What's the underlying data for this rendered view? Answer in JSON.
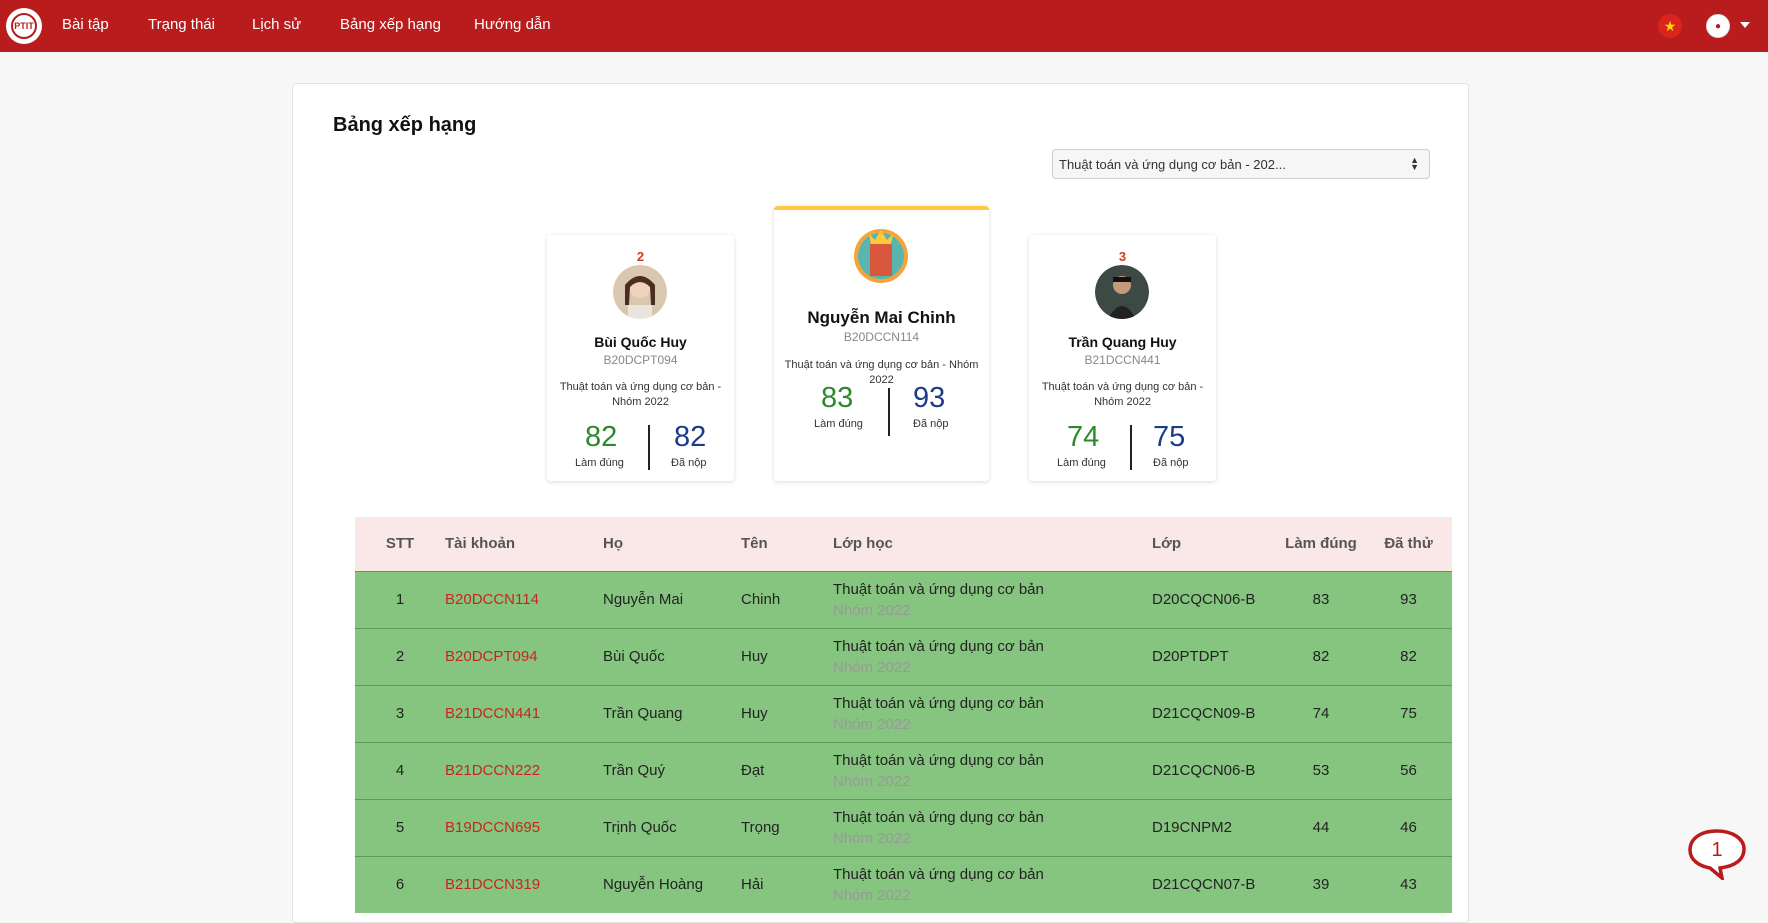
{
  "nav": {
    "items": [
      "Bài tập",
      "Trạng thái",
      "Lịch sử",
      "Bảng xếp hạng",
      "Hướng dẫn"
    ],
    "logo_text": "PTIT",
    "flag_icon": "vietnam-flag-icon",
    "accent": "#b81c1c"
  },
  "page": {
    "title": "Bảng xếp hạng",
    "select_value": "Thuật toán và ứng dụng cơ bản - 202..."
  },
  "podium": {
    "first": {
      "name": "Nguyễn Mai Chinh",
      "user": "B20DCCN114",
      "class": "Thuật toán và ứng dụng cơ bản - Nhóm 2022",
      "correct": "83",
      "submitted": "93",
      "correct_label": "Làm đúng",
      "submitted_label": "Đã nộp"
    },
    "second": {
      "rank": "2",
      "name": "Bùi Quốc Huy",
      "user": "B20DCPT094",
      "class": "Thuật toán và ứng dụng cơ bản - Nhóm 2022",
      "correct": "82",
      "submitted": "82",
      "correct_label": "Làm đúng",
      "submitted_label": "Đã nộp"
    },
    "third": {
      "rank": "3",
      "name": "Trần Quang Huy",
      "user": "B21DCCN441",
      "class": "Thuật toán và ứng dụng cơ bản - Nhóm 2022",
      "correct": "74",
      "submitted": "75",
      "correct_label": "Làm đúng",
      "submitted_label": "Đã nộp"
    }
  },
  "table": {
    "headers": [
      "STT",
      "Tài khoản",
      "Họ",
      "Tên",
      "Lớp học",
      "Lớp",
      "Làm đúng",
      "Đã thử"
    ],
    "rows": [
      [
        "1",
        "B20DCCN114",
        "Nguyễn Mai",
        "Chinh",
        "Thuật toán và ứng dụng cơ bản",
        "Nhóm 2022",
        "D20CQCN06-B",
        "83",
        "93"
      ],
      [
        "2",
        "B20DCPT094",
        "Bùi Quốc",
        "Huy",
        "Thuật toán và ứng dụng cơ bản",
        "Nhóm 2022",
        "D20PTDPT",
        "82",
        "82"
      ],
      [
        "3",
        "B21DCCN441",
        "Trần Quang",
        "Huy",
        "Thuật toán và ứng dụng cơ bản",
        "Nhóm 2022",
        "D21CQCN09-B",
        "74",
        "75"
      ],
      [
        "4",
        "B21DCCN222",
        "Trần Quý",
        "Đạt",
        "Thuật toán và ứng dụng cơ bản",
        "Nhóm 2022",
        "D21CQCN06-B",
        "53",
        "56"
      ],
      [
        "5",
        "B19DCCN695",
        "Trịnh Quốc",
        "Trọng",
        "Thuật toán và ứng dụng cơ bản",
        "Nhóm 2022",
        "D19CNPM2",
        "44",
        "46"
      ],
      [
        "6",
        "B21DCCN319",
        "Nguyễn Hoàng",
        "Hải",
        "Thuật toán và ứng dụng cơ bản",
        "Nhóm 2022",
        "D21CQCN07-B",
        "39",
        "43"
      ]
    ],
    "row_color": "#86c57f",
    "header_color": "#fae8e8"
  },
  "chat": {
    "count": "1",
    "icon": "chat-bubble-icon"
  }
}
